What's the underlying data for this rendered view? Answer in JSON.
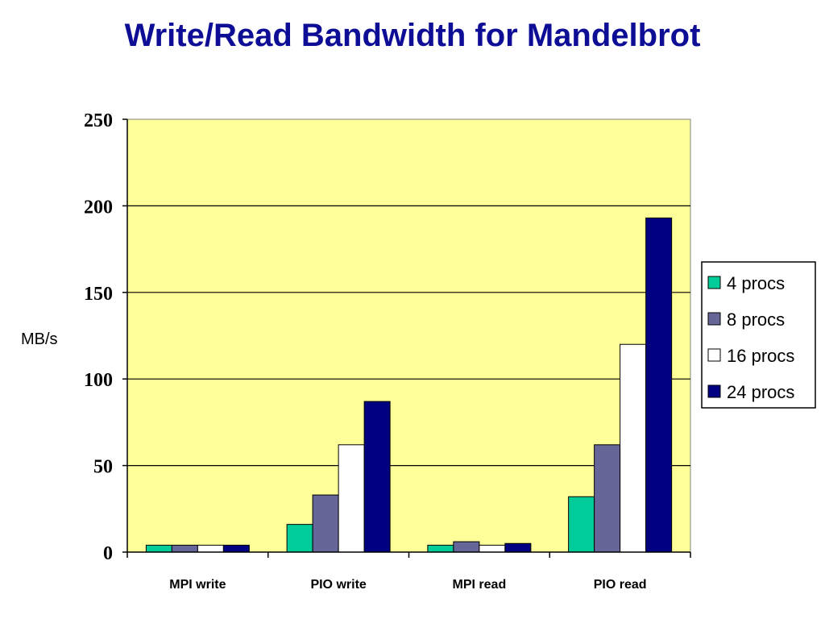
{
  "title": "Write/Read Bandwidth for Mandelbrot",
  "chart_data": {
    "type": "bar",
    "title": "Write/Read Bandwidth for Mandelbrot",
    "ylabel": "MB/s",
    "xlabel": "",
    "ylim": [
      0,
      250
    ],
    "yticks": [
      0,
      50,
      100,
      150,
      200,
      250
    ],
    "grid": true,
    "legend_position": "right",
    "plot_background": "#ffff99",
    "categories": [
      "MPI write",
      "PIO write",
      "MPI read",
      "PIO read"
    ],
    "series": [
      {
        "name": "4 procs",
        "color": "#00cc99",
        "values": [
          4,
          16,
          4,
          32
        ]
      },
      {
        "name": "8 procs",
        "color": "#666699",
        "values": [
          4,
          33,
          6,
          62
        ]
      },
      {
        "name": "16 procs",
        "color": "#ffffff",
        "values": [
          4,
          62,
          4,
          120
        ]
      },
      {
        "name": "24 procs",
        "color": "#000080",
        "values": [
          4,
          87,
          5,
          193
        ]
      }
    ]
  }
}
